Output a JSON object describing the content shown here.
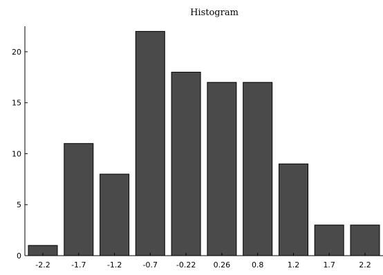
{
  "chart_data": {
    "type": "bar",
    "title": "Histogram",
    "xlabel": "",
    "ylabel": "",
    "categories": [
      "-2.2",
      "-1.7",
      "-1.2",
      "-0.7",
      "-0.22",
      "0.26",
      "0.8",
      "1.2",
      "1.7",
      "2.2"
    ],
    "values": [
      1,
      11,
      8,
      22,
      18,
      17,
      17,
      9,
      3,
      3
    ],
    "ylim": [
      0,
      22.5
    ],
    "yticks": [
      "0",
      "5",
      "10",
      "15",
      "20"
    ],
    "grid": false,
    "legend": "none",
    "colors": {
      "bar": "#4a4a4a",
      "edge": "#000000"
    }
  }
}
